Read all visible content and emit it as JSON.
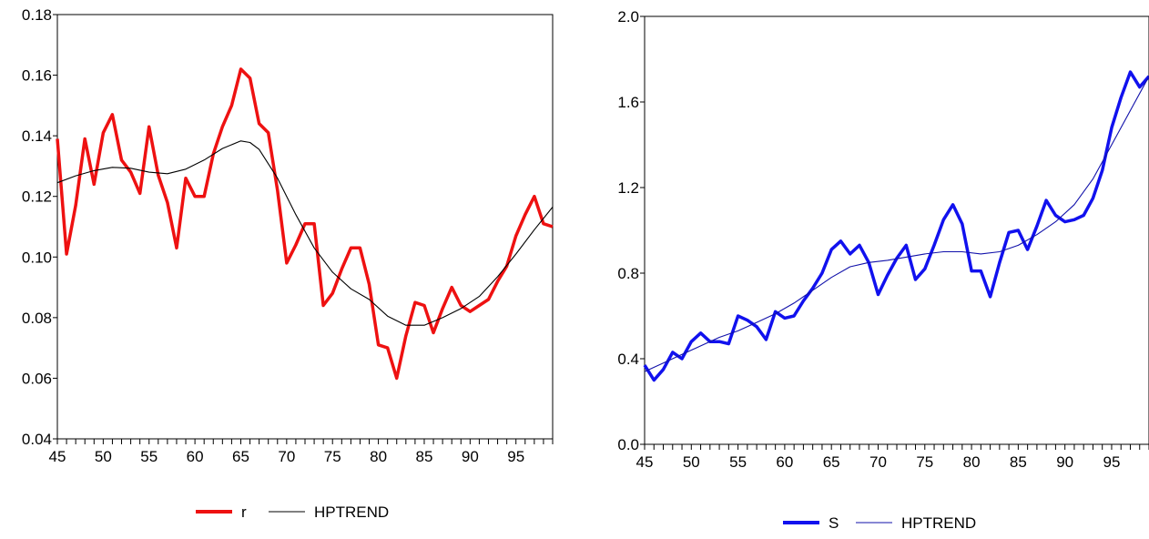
{
  "chart_data": [
    {
      "type": "line",
      "title": "",
      "xlabel": "",
      "ylabel": "",
      "xlim": [
        45,
        99
      ],
      "ylim": [
        0.04,
        0.18
      ],
      "x_ticks": [
        "45",
        "50",
        "55",
        "60",
        "65",
        "70",
        "75",
        "80",
        "85",
        "90",
        "95"
      ],
      "y_ticks": [
        "0.04",
        "0.06",
        "0.08",
        "0.10",
        "0.12",
        "0.14",
        "0.16",
        "0.18"
      ],
      "legend_position": "bottom",
      "series": [
        {
          "name": "r",
          "color": "#ee1111",
          "style": "thick",
          "x": [
            45,
            46,
            47,
            48,
            49,
            50,
            51,
            52,
            53,
            54,
            55,
            56,
            57,
            58,
            59,
            60,
            61,
            62,
            63,
            64,
            65,
            66,
            67,
            68,
            69,
            70,
            71,
            72,
            73,
            74,
            75,
            76,
            77,
            78,
            79,
            80,
            81,
            82,
            83,
            84,
            85,
            86,
            87,
            88,
            89,
            90,
            91,
            92,
            93,
            94,
            95,
            96,
            97,
            98,
            99
          ],
          "values": [
            0.139,
            0.101,
            0.117,
            0.139,
            0.124,
            0.141,
            0.147,
            0.132,
            0.128,
            0.121,
            0.143,
            0.127,
            0.118,
            0.103,
            0.126,
            0.12,
            0.12,
            0.134,
            0.143,
            0.15,
            0.162,
            0.159,
            0.144,
            0.141,
            0.122,
            0.098,
            0.104,
            0.111,
            0.111,
            0.084,
            0.088,
            0.096,
            0.103,
            0.103,
            0.091,
            0.071,
            0.07,
            0.06,
            0.074,
            0.085,
            0.084,
            0.075,
            0.083,
            0.09,
            0.084,
            0.082,
            0.084,
            0.086,
            0.092,
            0.097,
            0.107,
            0.114,
            0.12,
            0.111,
            0.11
          ]
        },
        {
          "name": "HPTREND",
          "color": "#000000",
          "style": "thin",
          "x": [
            45,
            47,
            49,
            51,
            53,
            55,
            57,
            59,
            61,
            63,
            65,
            66,
            67,
            69,
            71,
            73,
            75,
            77,
            79,
            81,
            83,
            85,
            87,
            89,
            91,
            93,
            95,
            97,
            99
          ],
          "values": [
            0.1245,
            0.1268,
            0.1285,
            0.1296,
            0.1293,
            0.128,
            0.1275,
            0.129,
            0.132,
            0.1358,
            0.1383,
            0.1378,
            0.1355,
            0.126,
            0.114,
            0.103,
            0.095,
            0.0895,
            0.086,
            0.0805,
            0.0775,
            0.0775,
            0.08,
            0.083,
            0.087,
            0.0935,
            0.101,
            0.109,
            0.1165
          ]
        }
      ]
    },
    {
      "type": "line",
      "title": "",
      "xlabel": "",
      "ylabel": "",
      "xlim": [
        45,
        99
      ],
      "ylim": [
        0.0,
        2.0
      ],
      "x_ticks": [
        "45",
        "50",
        "55",
        "60",
        "65",
        "70",
        "75",
        "80",
        "85",
        "90",
        "95"
      ],
      "y_ticks": [
        "0.0",
        "0.4",
        "0.8",
        "1.2",
        "1.6",
        "2.0"
      ],
      "legend_position": "bottom",
      "series": [
        {
          "name": "S",
          "color": "#1111ee",
          "style": "thick",
          "x": [
            45,
            46,
            47,
            48,
            49,
            50,
            51,
            52,
            53,
            54,
            55,
            56,
            57,
            58,
            59,
            60,
            61,
            62,
            63,
            64,
            65,
            66,
            67,
            68,
            69,
            70,
            71,
            72,
            73,
            74,
            75,
            76,
            77,
            78,
            79,
            80,
            81,
            82,
            83,
            84,
            85,
            86,
            87,
            88,
            89,
            90,
            91,
            92,
            93,
            94,
            95,
            96,
            97,
            98,
            99
          ],
          "values": [
            0.37,
            0.3,
            0.35,
            0.43,
            0.4,
            0.48,
            0.52,
            0.48,
            0.48,
            0.47,
            0.6,
            0.58,
            0.55,
            0.49,
            0.62,
            0.59,
            0.6,
            0.67,
            0.73,
            0.8,
            0.91,
            0.95,
            0.89,
            0.93,
            0.85,
            0.7,
            0.79,
            0.87,
            0.93,
            0.77,
            0.82,
            0.93,
            1.05,
            1.12,
            1.03,
            0.81,
            0.81,
            0.69,
            0.85,
            0.99,
            1.0,
            0.91,
            1.02,
            1.14,
            1.07,
            1.04,
            1.05,
            1.07,
            1.15,
            1.28,
            1.48,
            1.62,
            1.74,
            1.67,
            1.72
          ]
        },
        {
          "name": "HPTREND",
          "color": "#1111aa",
          "style": "thin",
          "x": [
            45,
            47,
            49,
            51,
            53,
            55,
            57,
            59,
            61,
            63,
            65,
            67,
            69,
            71,
            73,
            75,
            77,
            79,
            81,
            83,
            85,
            87,
            89,
            91,
            93,
            95,
            97,
            99
          ],
          "values": [
            0.34,
            0.38,
            0.42,
            0.46,
            0.5,
            0.53,
            0.57,
            0.61,
            0.66,
            0.72,
            0.78,
            0.83,
            0.85,
            0.86,
            0.875,
            0.89,
            0.9,
            0.9,
            0.89,
            0.9,
            0.93,
            0.98,
            1.04,
            1.12,
            1.24,
            1.4,
            1.56,
            1.72
          ]
        }
      ]
    }
  ]
}
